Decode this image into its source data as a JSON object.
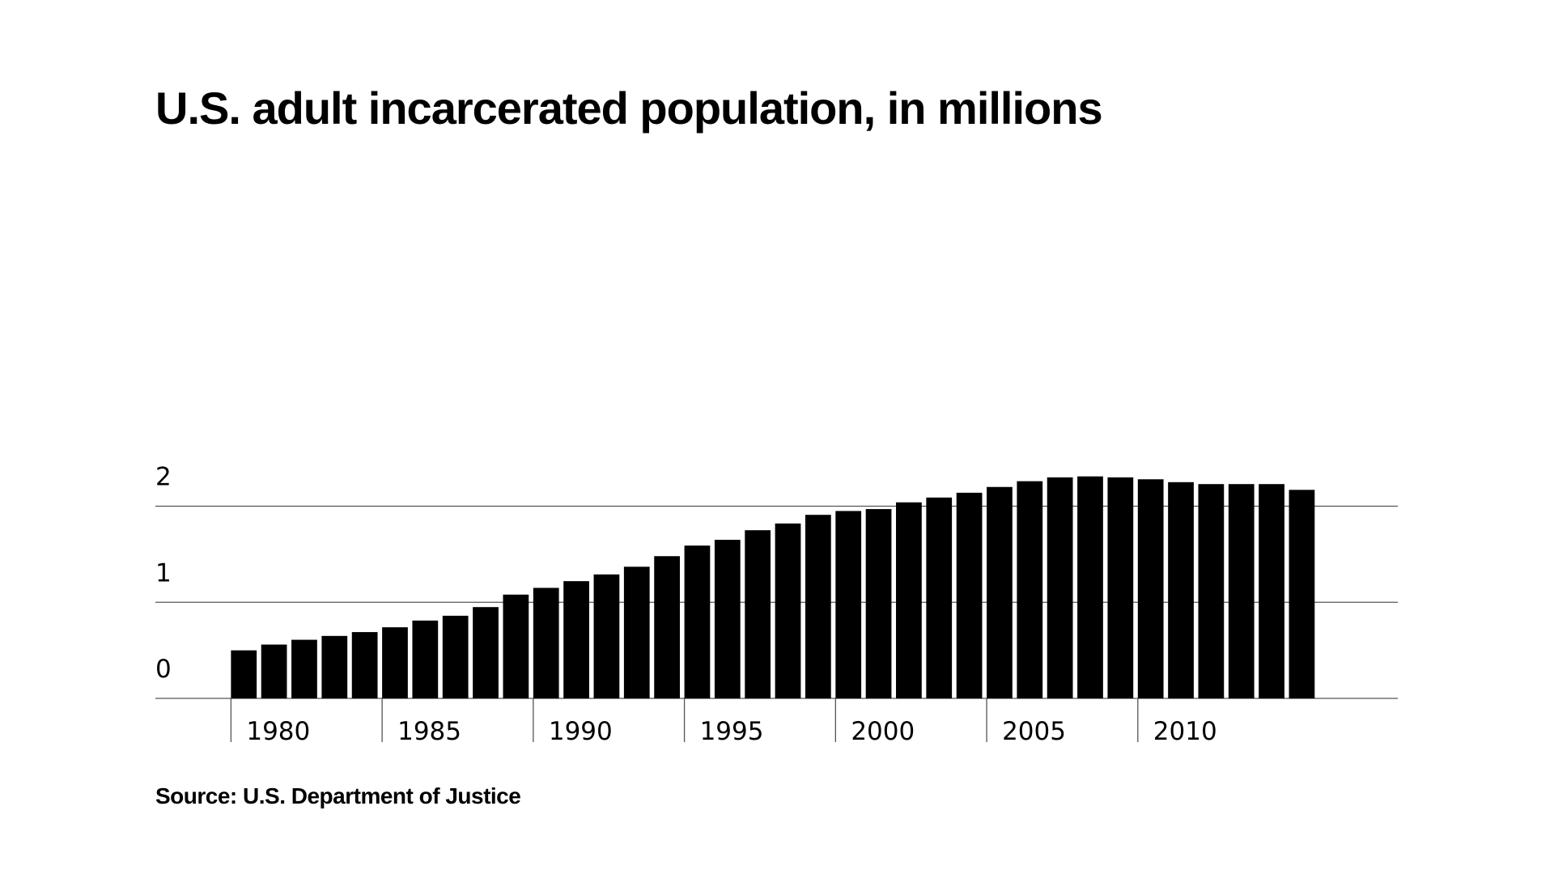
{
  "chart_data": {
    "type": "bar",
    "title": "U.S. adult incarcerated population, in millions",
    "source": "Source: U.S. Department of Justice",
    "x": [
      1980,
      1981,
      1982,
      1983,
      1984,
      1985,
      1986,
      1987,
      1988,
      1989,
      1990,
      1991,
      1992,
      1993,
      1994,
      1995,
      1996,
      1997,
      1998,
      1999,
      2000,
      2001,
      2002,
      2003,
      2004,
      2005,
      2006,
      2007,
      2008,
      2009,
      2010,
      2011,
      2012,
      2013,
      2014,
      2015
    ],
    "values": [
      0.5,
      0.56,
      0.61,
      0.65,
      0.69,
      0.74,
      0.81,
      0.86,
      0.95,
      1.08,
      1.15,
      1.22,
      1.29,
      1.37,
      1.48,
      1.59,
      1.65,
      1.75,
      1.82,
      1.91,
      1.95,
      1.97,
      2.04,
      2.09,
      2.14,
      2.2,
      2.26,
      2.3,
      2.31,
      2.3,
      2.28,
      2.25,
      2.23,
      2.23,
      2.23,
      2.17
    ],
    "color": "#000000",
    "xlim": [
      1977.5,
      2018.6
    ],
    "xticks": [
      1980,
      1985,
      1990,
      1995,
      2000,
      2005,
      2010
    ],
    "ylim": [
      0,
      2.4
    ],
    "yticks": [
      0,
      1,
      2
    ],
    "grid": true
  }
}
